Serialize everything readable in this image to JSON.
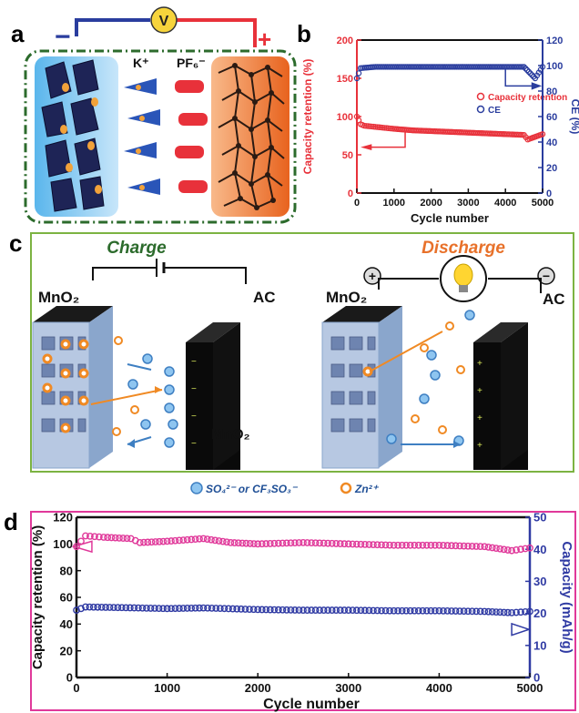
{
  "panel_a": {
    "label": "a",
    "voltmeter": "V",
    "neg": "−",
    "pos": "+",
    "cation": "K⁺",
    "anion": "PF₆⁻"
  },
  "panel_b": {
    "label": "b"
  },
  "panel_c": {
    "label": "c",
    "charge_title": "Charge",
    "discharge_title": "Discharge",
    "mno2_left": "MnO₂",
    "ac_left": "AC",
    "mno2_right": "MnO₂",
    "ac_right": "AC",
    "mno2_mid": "MnO₂",
    "legend_anion": "SO₄²⁻ or CF₃SO₃⁻",
    "legend_cation": "Zn²⁺",
    "plus": "+",
    "minus": "−"
  },
  "panel_d": {
    "label": "d"
  },
  "chart_data": [
    {
      "id": "b",
      "type": "scatter",
      "xlabel": "Cycle number",
      "ylabel": "Capacity retention (%)",
      "y2label": "CE (%)",
      "xlim": [
        0,
        5000
      ],
      "ylim": [
        0,
        200
      ],
      "y2lim": [
        0,
        120
      ],
      "xticks": [
        0,
        1000,
        2000,
        3000,
        4000,
        5000
      ],
      "yticks": [
        0,
        50,
        100,
        150,
        200
      ],
      "y2ticks": [
        0,
        20,
        40,
        60,
        80,
        100,
        120
      ],
      "legend": "right",
      "series": [
        {
          "name": "Capacity retention",
          "axis": "left",
          "color": "#e8313a",
          "x": [
            0,
            100,
            200,
            400,
            600,
            800,
            1000,
            1500,
            2000,
            2500,
            3000,
            3500,
            4000,
            4500,
            4600,
            5000
          ],
          "y": [
            100,
            90,
            88,
            87,
            86,
            85,
            84,
            82,
            81,
            80,
            79,
            78,
            77,
            76,
            70,
            77
          ]
        },
        {
          "name": "CE",
          "axis": "right",
          "color": "#2a3d9e",
          "x": [
            0,
            100,
            500,
            1000,
            1500,
            2000,
            2500,
            3000,
            3500,
            4000,
            4500,
            4800,
            5000
          ],
          "y": [
            90,
            98,
            99,
            99,
            99,
            99,
            99,
            99,
            99,
            99,
            99,
            90,
            99
          ]
        }
      ]
    },
    {
      "id": "d",
      "type": "scatter",
      "xlabel": "Cycle number",
      "ylabel": "Capacity retention (%)",
      "y2label": "Capacity (mAh/g)",
      "xlim": [
        0,
        5000
      ],
      "ylim": [
        0,
        120
      ],
      "y2lim": [
        0,
        50
      ],
      "xticks": [
        0,
        1000,
        2000,
        3000,
        4000,
        5000
      ],
      "yticks": [
        0,
        20,
        40,
        60,
        80,
        100,
        120
      ],
      "y2ticks": [
        0,
        10,
        20,
        30,
        40,
        50
      ],
      "series": [
        {
          "name": "Capacity retention",
          "axis": "left",
          "color": "#e0399a",
          "x": [
            0,
            100,
            300,
            600,
            700,
            1000,
            1400,
            1700,
            2000,
            2500,
            3000,
            3500,
            4000,
            4500,
            4800,
            5000
          ],
          "y": [
            98,
            106,
            105,
            104,
            101,
            102,
            104,
            101,
            100,
            101,
            100,
            99,
            99,
            98,
            95,
            97
          ]
        },
        {
          "name": "Capacity",
          "axis": "right",
          "color": "#2f3aa3",
          "x": [
            0,
            100,
            500,
            1000,
            1400,
            2000,
            2500,
            3000,
            3500,
            4000,
            4500,
            4800,
            5000
          ],
          "y": [
            21.0,
            22.0,
            21.8,
            21.5,
            21.7,
            21.2,
            21.0,
            21.0,
            20.8,
            20.8,
            20.6,
            20.2,
            20.6
          ]
        }
      ]
    }
  ]
}
